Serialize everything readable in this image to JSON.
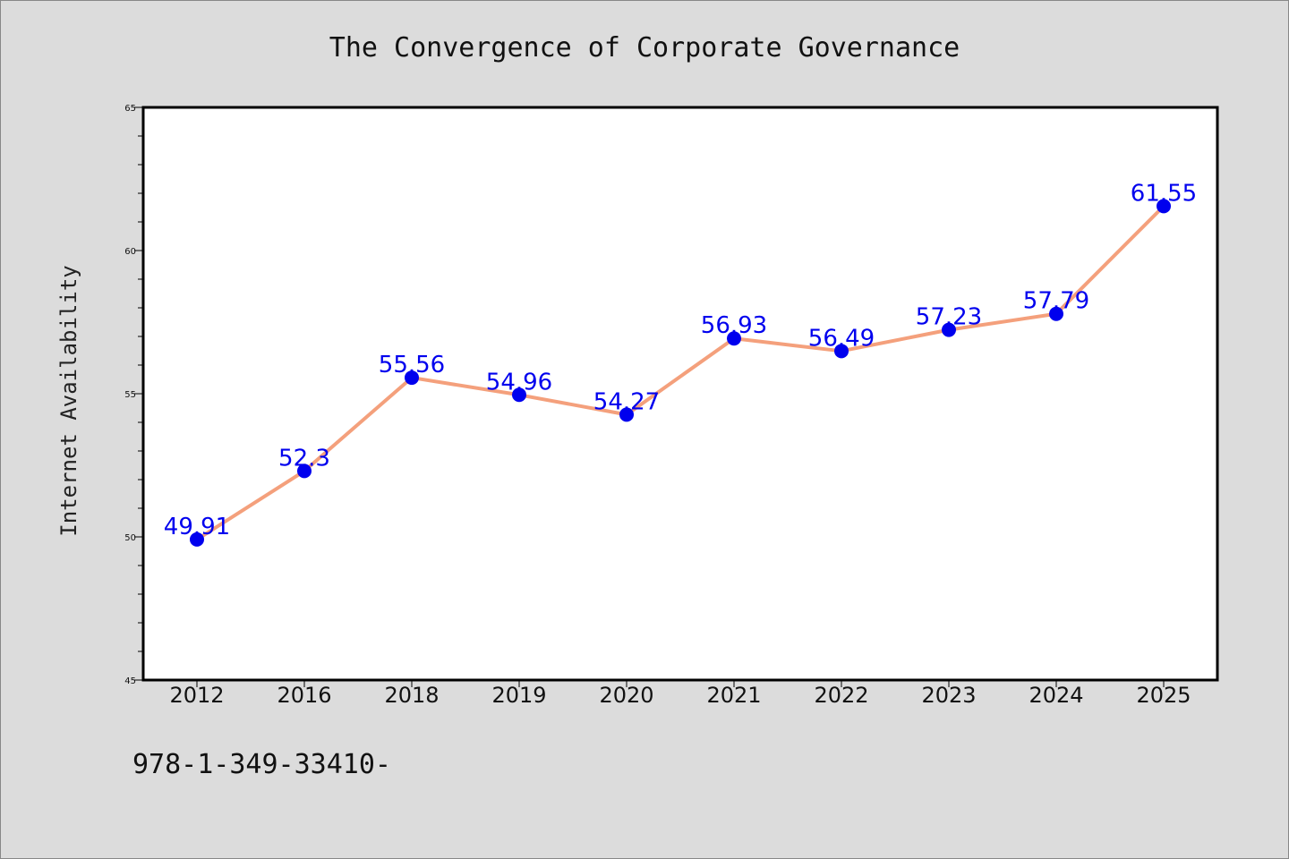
{
  "footer": "978-1-349-33410-",
  "chart_data": {
    "type": "line",
    "title": "The Convergence of Corporate Governance",
    "xlabel": "",
    "ylabel": "Internet Availability",
    "categories": [
      "2012",
      "2016",
      "2018",
      "2019",
      "2020",
      "2021",
      "2022",
      "2023",
      "2024",
      "2025"
    ],
    "series": [
      {
        "values": [
          49.91,
          52.3,
          55.56,
          54.96,
          54.27,
          56.93,
          56.49,
          57.23,
          57.79,
          61.55
        ],
        "data_labels": [
          "49.91",
          "52.3",
          "55.56",
          "54.96",
          "54.27",
          "56.93",
          "56.49",
          "57.23",
          "57.79",
          "61.55"
        ],
        "line_color": "#f4a07c",
        "marker_color": "#0000ee"
      }
    ],
    "ylim": [
      45,
      65
    ],
    "yticks": [
      "45",
      "50",
      "55",
      "60",
      "65"
    ],
    "grid": false,
    "legend": "none",
    "background": "#dcdcdc",
    "plot_background": "#ffffff"
  }
}
